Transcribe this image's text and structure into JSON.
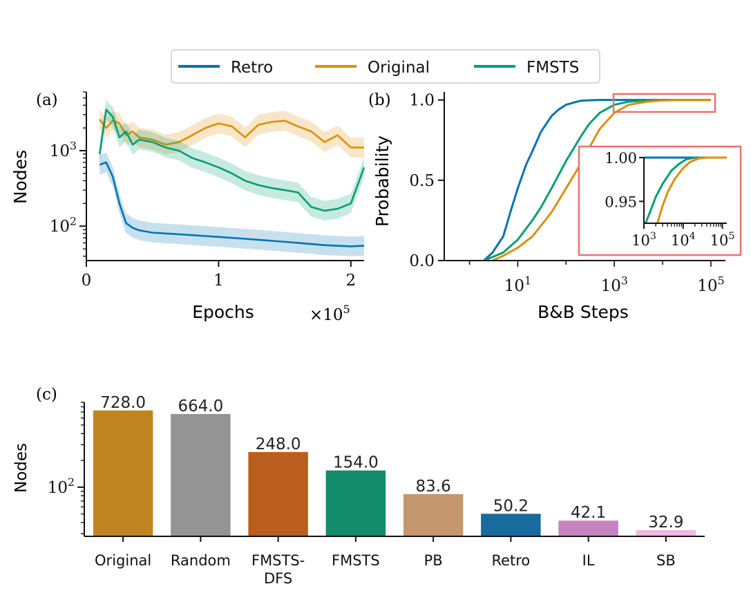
{
  "legend": {
    "placement": "top-center",
    "entries": [
      {
        "label": "Retro",
        "color": "#0173b2"
      },
      {
        "label": "Original",
        "color": "#de8f05"
      },
      {
        "label": "FMSTS",
        "color": "#029e73"
      }
    ]
  },
  "chart_data": [
    {
      "panel": "(a)",
      "type": "line",
      "xlabel": "Epochs",
      "x_multiplier": "×10",
      "x_multiplier_exp": "5",
      "ylabel": "Nodes",
      "yscale": "log",
      "xlim": [
        0,
        2.1
      ],
      "ylim": [
        35,
        6000
      ],
      "xticks": [
        {
          "value": 0,
          "label": "0"
        },
        {
          "value": 1,
          "label": "1"
        },
        {
          "value": 2,
          "label": "2"
        }
      ],
      "yticks": [
        {
          "value": 100,
          "label": "10",
          "exp": "2"
        },
        {
          "value": 1000,
          "label": "10",
          "exp": "3"
        }
      ],
      "shaded_band": true,
      "series": [
        {
          "name": "Retro",
          "color": "#0173b2",
          "x": [
            0.1,
            0.15,
            0.2,
            0.25,
            0.3,
            0.35,
            0.4,
            0.5,
            0.6,
            0.7,
            0.8,
            0.9,
            1.0,
            1.1,
            1.2,
            1.3,
            1.4,
            1.5,
            1.6,
            1.7,
            1.8,
            1.9,
            2.0,
            2.1
          ],
          "y": [
            650,
            700,
            450,
            200,
            110,
            95,
            88,
            82,
            80,
            78,
            76,
            74,
            72,
            70,
            68,
            66,
            64,
            62,
            60,
            58,
            56,
            55,
            54,
            55
          ]
        },
        {
          "name": "Original",
          "color": "#de8f05",
          "x": [
            0.1,
            0.15,
            0.2,
            0.25,
            0.3,
            0.35,
            0.4,
            0.5,
            0.6,
            0.7,
            0.8,
            0.9,
            1.0,
            1.1,
            1.2,
            1.3,
            1.4,
            1.5,
            1.6,
            1.7,
            1.8,
            1.9,
            2.0,
            2.1
          ],
          "y": [
            2600,
            2000,
            2500,
            2300,
            1600,
            1800,
            1500,
            1400,
            1200,
            1300,
            1600,
            2000,
            2300,
            2100,
            1500,
            2200,
            2400,
            2500,
            2100,
            1800,
            1300,
            1600,
            1100,
            1100
          ]
        },
        {
          "name": "FMSTS",
          "color": "#029e73",
          "x": [
            0.1,
            0.15,
            0.2,
            0.25,
            0.3,
            0.35,
            0.4,
            0.5,
            0.6,
            0.7,
            0.8,
            0.9,
            1.0,
            1.1,
            1.2,
            1.3,
            1.4,
            1.5,
            1.6,
            1.7,
            1.8,
            1.9,
            2.0,
            2.1
          ],
          "y": [
            900,
            3500,
            2800,
            1500,
            1800,
            1200,
            1400,
            1300,
            1100,
            1000,
            800,
            700,
            600,
            500,
            400,
            350,
            320,
            300,
            280,
            180,
            160,
            170,
            200,
            600
          ]
        }
      ]
    },
    {
      "panel": "(b)",
      "type": "line",
      "xlabel": "B&B Steps",
      "ylabel": "Probability",
      "xscale": "log",
      "xlim": [
        0.3,
        200000
      ],
      "ylim": [
        0,
        1.05
      ],
      "xticks": [
        {
          "value": 10,
          "label": "10",
          "exp": "1"
        },
        {
          "value": 1000,
          "label": "10",
          "exp": "3"
        },
        {
          "value": 100000,
          "label": "10",
          "exp": "5"
        }
      ],
      "yticks": [
        {
          "value": 0.0,
          "label": "0.0"
        },
        {
          "value": 0.5,
          "label": "0.5"
        },
        {
          "value": 1.0,
          "label": "1.0"
        }
      ],
      "highlight_box_color": "#e8736c",
      "series": [
        {
          "name": "Retro",
          "color": "#0173b2",
          "x": [
            2,
            3,
            5,
            7,
            10,
            15,
            20,
            30,
            50,
            70,
            100,
            150,
            200,
            300,
            500,
            1000,
            100000
          ],
          "y": [
            0.0,
            0.05,
            0.15,
            0.3,
            0.45,
            0.6,
            0.68,
            0.8,
            0.9,
            0.94,
            0.97,
            0.985,
            0.995,
            0.998,
            1.0,
            1.0,
            1.0
          ]
        },
        {
          "name": "FMSTS",
          "color": "#029e73",
          "x": [
            2,
            5,
            10,
            20,
            30,
            50,
            100,
            200,
            300,
            500,
            1000,
            2000,
            5000,
            10000,
            100000
          ],
          "y": [
            0.0,
            0.05,
            0.13,
            0.25,
            0.33,
            0.45,
            0.62,
            0.77,
            0.85,
            0.92,
            0.97,
            0.99,
            0.997,
            1.0,
            1.0
          ]
        },
        {
          "name": "Original",
          "color": "#de8f05",
          "x": [
            3,
            5,
            10,
            20,
            50,
            100,
            200,
            300,
            500,
            1000,
            2000,
            5000,
            10000,
            20000,
            100000
          ],
          "y": [
            0.0,
            0.03,
            0.08,
            0.15,
            0.3,
            0.45,
            0.6,
            0.7,
            0.82,
            0.92,
            0.97,
            0.99,
            0.997,
            1.0,
            1.0
          ]
        }
      ],
      "inset": {
        "xscale": "log",
        "xlim": [
          1000,
          130000
        ],
        "ylim": [
          0.925,
          1.0
        ],
        "xticks": [
          {
            "value": 1000,
            "label": "10",
            "exp": "3"
          },
          {
            "value": 10000,
            "label": "10",
            "exp": "4"
          },
          {
            "value": 100000,
            "label": "10",
            "exp": "5"
          }
        ],
        "yticks": [
          {
            "value": 1.0,
            "label": "1.00"
          },
          {
            "value": 0.95,
            "label": "0.95"
          }
        ],
        "series": [
          {
            "name": "Retro",
            "color": "#0173b2",
            "x": [
              1000,
              130000
            ],
            "y": [
              1.0,
              1.0
            ]
          },
          {
            "name": "FMSTS",
            "color": "#029e73",
            "x": [
              1100,
              1500,
              2000,
              3000,
              5000,
              8000,
              12000,
              20000,
              130000
            ],
            "y": [
              0.925,
              0.94,
              0.955,
              0.97,
              0.985,
              0.993,
              0.998,
              1.0,
              1.0
            ]
          },
          {
            "name": "Original",
            "color": "#de8f05",
            "x": [
              2200,
              3000,
              4000,
              6000,
              10000,
              15000,
              25000,
              40000,
              130000
            ],
            "y": [
              0.925,
              0.945,
              0.96,
              0.975,
              0.988,
              0.995,
              0.999,
              1.0,
              1.0
            ]
          }
        ]
      }
    },
    {
      "panel": "(c)",
      "type": "bar",
      "ylabel": "Nodes",
      "yscale": "log",
      "ylim": [
        28,
        900
      ],
      "yticks": [
        {
          "value": 100,
          "label": "10",
          "exp": "2"
        }
      ],
      "categories": [
        "Original",
        "Random",
        "FMSTS-\nDFS",
        "FMSTS",
        "PB",
        "Retro",
        "IL",
        "SB"
      ],
      "values": [
        728.0,
        664.0,
        248.0,
        154.0,
        83.6,
        50.2,
        42.1,
        32.9
      ],
      "value_labels": [
        "728.0",
        "664.0",
        "248.0",
        "154.0",
        "83.6",
        "50.2",
        "42.1",
        "32.9"
      ],
      "colors": [
        "#c08521",
        "#949494",
        "#b95e1e",
        "#148b69",
        "#c4976e",
        "#176b9d",
        "#c584be",
        "#f3b8e2"
      ]
    }
  ]
}
